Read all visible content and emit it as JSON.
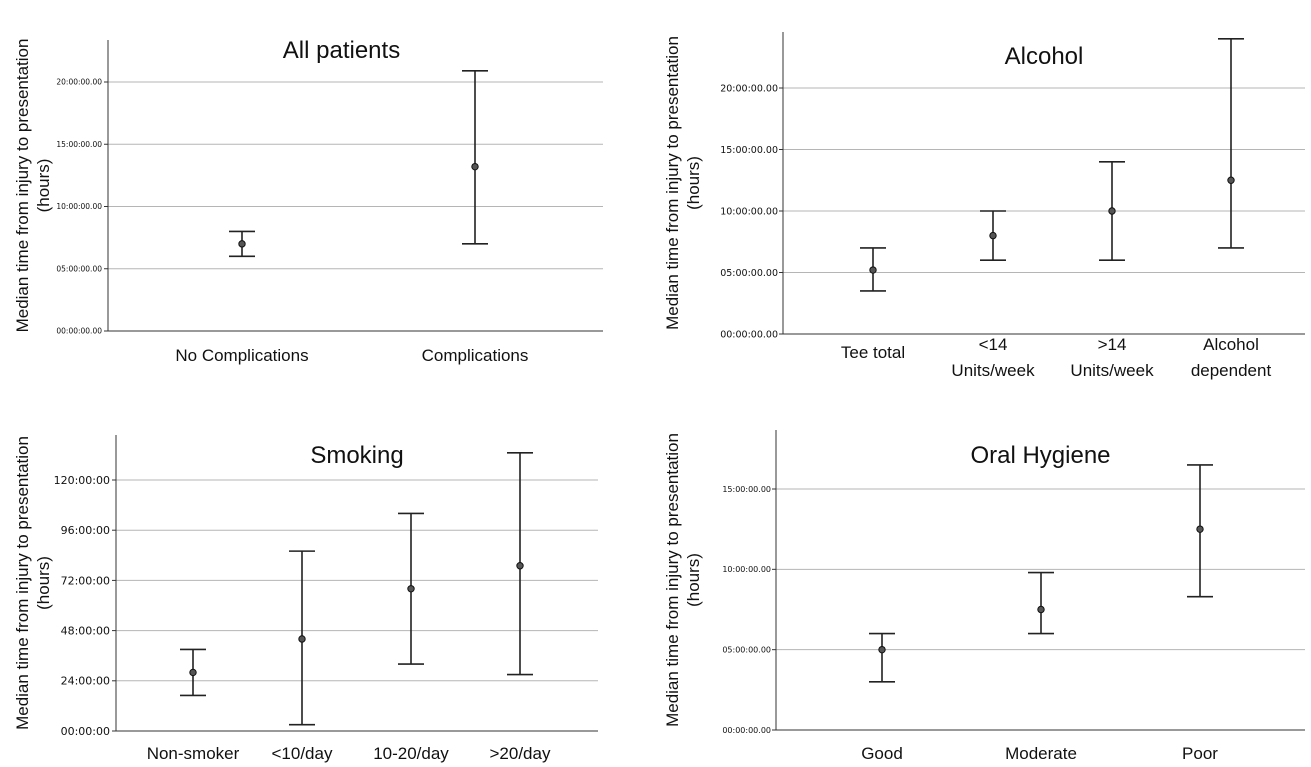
{
  "chart_data": [
    {
      "type": "errorbar",
      "title": "All patients",
      "ylabel": "Median time from injury to presentation (hours)",
      "ylim": [
        0,
        24
      ],
      "yticks": [
        0,
        5,
        10,
        15,
        20
      ],
      "ytick_labels": [
        "00:00:00.00",
        "05:00:00.00",
        "10:00:00.00",
        "15:00:00.00",
        "20:00:00.00"
      ],
      "categories": [
        "No Complications",
        "Complications"
      ],
      "median": [
        7.0,
        13.2
      ],
      "lower": [
        6.0,
        7.0
      ],
      "upper": [
        8.0,
        20.9
      ],
      "grid": true
    },
    {
      "type": "errorbar",
      "title": "Alcohol",
      "ylabel": "Median time from injury to presentation (hours)",
      "ylim": [
        0,
        24
      ],
      "yticks": [
        0,
        5,
        10,
        15,
        20
      ],
      "ytick_labels": [
        "00:00:00.00",
        "05:00:00.00",
        "10:00:00.00",
        "15:00:00.00",
        "20:00:00.00"
      ],
      "categories": [
        "Tee total",
        "<14 Units/week",
        ">14 Units/week",
        "Alcohol dependent"
      ],
      "median": [
        5.2,
        8.0,
        10.0,
        12.5
      ],
      "lower": [
        3.5,
        6.0,
        6.0,
        7.0
      ],
      "upper": [
        7.0,
        10.0,
        14.0,
        24.0
      ],
      "grid": true
    },
    {
      "type": "errorbar",
      "title": "Smoking",
      "ylabel": "Median time from injury to presentation (hours)",
      "ylim": [
        0,
        140
      ],
      "yticks": [
        0,
        24,
        48,
        72,
        96,
        120
      ],
      "ytick_labels": [
        "00:00:00",
        "24:00:00",
        "48:00:00",
        "72:00:00",
        "96:00:00",
        "120:00:00"
      ],
      "categories": [
        "Non-smoker",
        "<10/day",
        "10-20/day",
        ">20/day"
      ],
      "median": [
        28,
        44,
        68,
        79
      ],
      "lower": [
        17,
        3,
        32,
        27
      ],
      "upper": [
        39,
        86,
        104,
        133
      ],
      "grid": true
    },
    {
      "type": "errorbar",
      "title": "Oral Hygiene",
      "ylabel": "Median time from injury to presentation (hours)",
      "ylim": [
        0,
        18
      ],
      "yticks": [
        0,
        5,
        10,
        15
      ],
      "ytick_labels": [
        "00:00:00.00",
        "05:00:00.00",
        "10:00:00.00",
        "15:00:00.00"
      ],
      "categories": [
        "Good",
        "Moderate",
        "Poor"
      ],
      "median": [
        5.0,
        7.5,
        12.5
      ],
      "lower": [
        3.0,
        6.0,
        8.3
      ],
      "upper": [
        6.0,
        9.8,
        16.5
      ],
      "grid": true
    }
  ]
}
